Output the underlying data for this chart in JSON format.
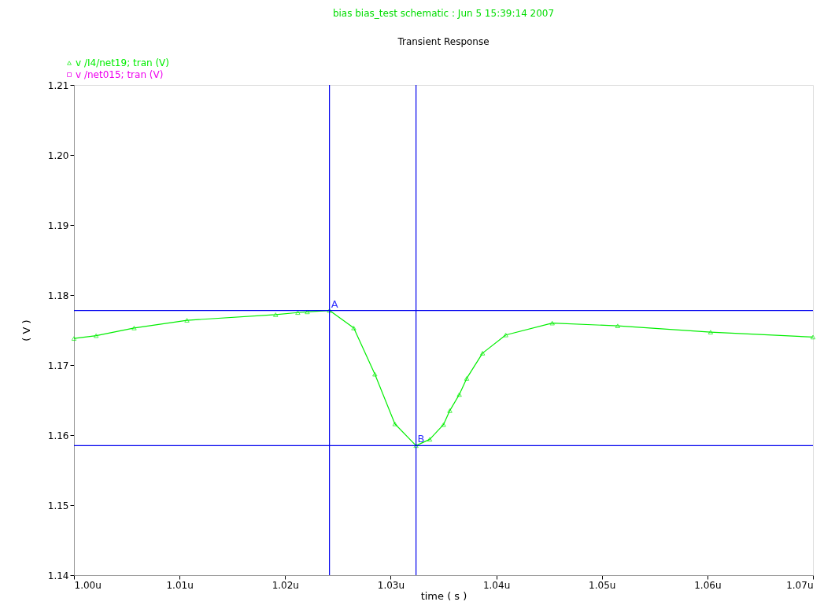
{
  "chart_data": {
    "type": "line",
    "title": "bias bias_test schematic : Jun  5 15:39:14 2007",
    "subtitle": "Transient Response",
    "xlabel": "time ( s )",
    "ylabel": "( V )",
    "series": [
      {
        "name": "v /I4/net19; tran (V)",
        "color": "#00ee00",
        "marker": "triangle",
        "x": [
          1.0,
          1.0021,
          1.0057,
          1.0107,
          1.0191,
          1.0212,
          1.0221,
          1.0242,
          1.0265,
          1.0285,
          1.0304,
          1.0324,
          1.0337,
          1.035,
          1.0356,
          1.0365,
          1.0372,
          1.0387,
          1.0409,
          1.0453,
          1.0515,
          1.0603,
          1.07
        ],
        "values": [
          1.1738,
          1.1742,
          1.1753,
          1.1764,
          1.1772,
          1.1775,
          1.1776,
          1.1778,
          1.1753,
          1.1687,
          1.1616,
          1.1585,
          1.1594,
          1.1615,
          1.1635,
          1.1658,
          1.1681,
          1.1717,
          1.1743,
          1.176,
          1.1756,
          1.1747,
          1.174
        ]
      },
      {
        "name": "v /net015; tran (V)",
        "color": "#ee00ee",
        "marker": "square"
      }
    ],
    "xlim": [
      1.0,
      1.07
    ],
    "ylim": [
      1.14,
      1.21
    ],
    "xticks": [
      {
        "value": 1.0,
        "label": "1.00u"
      },
      {
        "value": 1.01,
        "label": "1.01u"
      },
      {
        "value": 1.02,
        "label": "1.02u"
      },
      {
        "value": 1.03,
        "label": "1.03u"
      },
      {
        "value": 1.04,
        "label": "1.04u"
      },
      {
        "value": 1.05,
        "label": "1.05u"
      },
      {
        "value": 1.06,
        "label": "1.06u"
      },
      {
        "value": 1.07,
        "label": "1.07u"
      }
    ],
    "yticks": [
      1.14,
      1.15,
      1.16,
      1.17,
      1.18,
      1.19,
      {
        "value": 1.2,
        "label": "1.20"
      },
      1.21
    ],
    "ref_lines": [
      {
        "axis": "x",
        "value": 1.0242,
        "color": "#0000ee"
      },
      {
        "axis": "x",
        "value": 1.0324,
        "color": "#0000ee"
      },
      {
        "axis": "y",
        "value": 1.1778,
        "color": "#0000ee"
      },
      {
        "axis": "y",
        "value": 1.1585,
        "color": "#0000ee"
      }
    ],
    "annotations": [
      {
        "text": "A",
        "x": 1.0242,
        "y": 1.1778
      },
      {
        "text": "B",
        "x": 1.0324,
        "y": 1.1585
      }
    ],
    "grid": false,
    "legend": "top left"
  }
}
